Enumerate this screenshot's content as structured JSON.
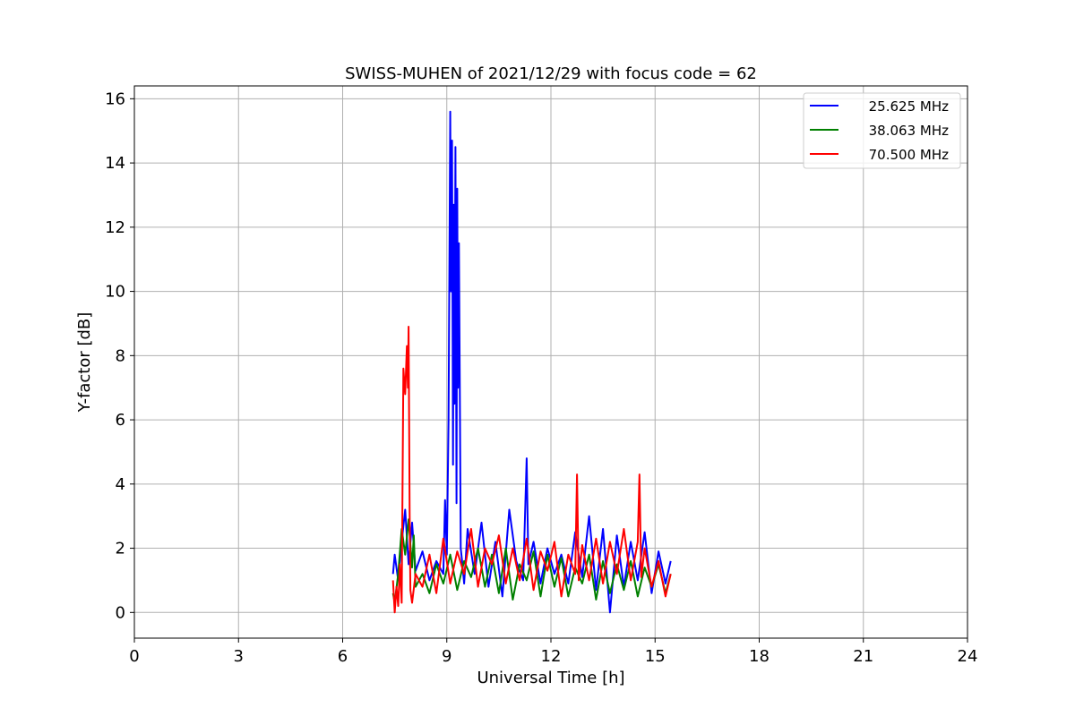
{
  "chart_data": {
    "type": "line",
    "title": "SWISS-MUHEN of 2021/12/29 with focus code = 62",
    "xlabel": "Universal Time [h]",
    "ylabel": "Y-factor [dB]",
    "xlim": [
      0,
      24
    ],
    "ylim": [
      -0.8,
      16.4
    ],
    "xticks": [
      0,
      3,
      6,
      9,
      12,
      15,
      18,
      21,
      24
    ],
    "xtick_labels": [
      "0",
      "3",
      "6",
      "9",
      "12",
      "15",
      "18",
      "21",
      "24"
    ],
    "yticks": [
      0,
      2,
      4,
      6,
      8,
      10,
      12,
      14,
      16
    ],
    "ytick_labels": [
      "0",
      "2",
      "4",
      "6",
      "8",
      "10",
      "12",
      "14",
      "16"
    ],
    "grid": true,
    "legend_position": "top-right",
    "series": [
      {
        "name": "25.625 MHz",
        "color": "#0000ff",
        "x": [
          7.45,
          7.5,
          7.6,
          7.7,
          7.8,
          7.9,
          8.0,
          8.1,
          8.3,
          8.5,
          8.7,
          8.9,
          8.95,
          9.0,
          9.05,
          9.1,
          9.12,
          9.15,
          9.18,
          9.2,
          9.22,
          9.25,
          9.28,
          9.3,
          9.32,
          9.35,
          9.38,
          9.4,
          9.45,
          9.5,
          9.6,
          9.8,
          10.0,
          10.2,
          10.4,
          10.6,
          10.8,
          11.0,
          11.2,
          11.3,
          11.35,
          11.5,
          11.7,
          11.9,
          12.1,
          12.3,
          12.5,
          12.7,
          12.9,
          13.1,
          13.3,
          13.5,
          13.7,
          13.9,
          14.1,
          14.3,
          14.5,
          14.7,
          14.9,
          15.1,
          15.3,
          15.45
        ],
        "y": [
          1.2,
          1.8,
          1.0,
          2.2,
          3.2,
          1.5,
          2.8,
          1.3,
          1.9,
          1.0,
          1.6,
          1.2,
          3.5,
          1.8,
          6.0,
          15.6,
          10.0,
          14.7,
          4.6,
          12.7,
          6.5,
          14.5,
          3.4,
          13.2,
          7.0,
          11.5,
          6.0,
          2.0,
          1.5,
          0.9,
          2.6,
          1.2,
          2.8,
          0.8,
          2.2,
          0.5,
          3.2,
          1.6,
          1.0,
          4.8,
          1.5,
          2.2,
          0.9,
          2.0,
          1.2,
          1.8,
          0.9,
          2.5,
          1.1,
          3.0,
          0.7,
          2.6,
          0.0,
          2.4,
          0.8,
          2.2,
          1.0,
          2.5,
          0.6,
          1.9,
          0.9,
          1.6
        ]
      },
      {
        "name": "38.063 MHz",
        "color": "#008000",
        "x": [
          7.45,
          7.5,
          7.6,
          7.7,
          7.8,
          7.9,
          8.0,
          8.05,
          8.1,
          8.3,
          8.5,
          8.7,
          8.9,
          9.1,
          9.3,
          9.5,
          9.7,
          9.9,
          10.1,
          10.3,
          10.5,
          10.7,
          10.9,
          11.1,
          11.3,
          11.5,
          11.7,
          11.9,
          12.1,
          12.3,
          12.5,
          12.7,
          12.9,
          13.1,
          13.3,
          13.5,
          13.7,
          13.9,
          14.1,
          14.3,
          14.5,
          14.7,
          14.9,
          15.1,
          15.3,
          15.45
        ],
        "y": [
          0.6,
          0.3,
          1.2,
          2.6,
          1.8,
          2.9,
          1.4,
          2.4,
          0.8,
          1.2,
          0.6,
          1.5,
          0.9,
          1.8,
          0.7,
          1.6,
          1.1,
          2.0,
          0.8,
          1.8,
          0.6,
          2.0,
          0.4,
          1.5,
          1.0,
          1.9,
          0.5,
          1.8,
          0.8,
          1.7,
          0.5,
          1.4,
          0.9,
          1.8,
          0.4,
          1.6,
          0.6,
          1.5,
          0.7,
          1.6,
          0.5,
          1.4,
          0.8,
          1.5,
          0.6,
          1.2
        ]
      },
      {
        "name": "70.500 MHz",
        "color": "#ff0000",
        "x": [
          7.45,
          7.5,
          7.55,
          7.6,
          7.65,
          7.7,
          7.75,
          7.8,
          7.85,
          7.88,
          7.9,
          7.93,
          7.95,
          8.0,
          8.1,
          8.3,
          8.5,
          8.7,
          8.9,
          9.1,
          9.3,
          9.5,
          9.7,
          9.9,
          10.1,
          10.3,
          10.5,
          10.7,
          10.9,
          11.1,
          11.3,
          11.5,
          11.7,
          11.9,
          12.1,
          12.3,
          12.5,
          12.7,
          12.75,
          12.8,
          12.9,
          13.1,
          13.3,
          13.5,
          13.7,
          13.9,
          14.1,
          14.3,
          14.5,
          14.55,
          14.6,
          14.7,
          14.9,
          15.1,
          15.3,
          15.45
        ],
        "y": [
          1.0,
          0.0,
          0.8,
          0.2,
          1.5,
          0.3,
          7.6,
          6.8,
          8.3,
          7.0,
          8.9,
          3.0,
          0.7,
          0.3,
          1.2,
          0.8,
          1.8,
          0.6,
          2.3,
          0.9,
          1.9,
          1.2,
          2.6,
          0.8,
          2.0,
          1.5,
          2.4,
          0.9,
          2.0,
          1.0,
          2.3,
          0.7,
          1.9,
          1.3,
          2.2,
          0.5,
          1.8,
          1.2,
          4.3,
          1.0,
          2.1,
          1.0,
          2.3,
          0.9,
          2.2,
          1.2,
          2.6,
          1.0,
          2.2,
          4.3,
          1.1,
          2.0,
          0.8,
          1.6,
          0.5,
          1.2
        ]
      }
    ]
  }
}
